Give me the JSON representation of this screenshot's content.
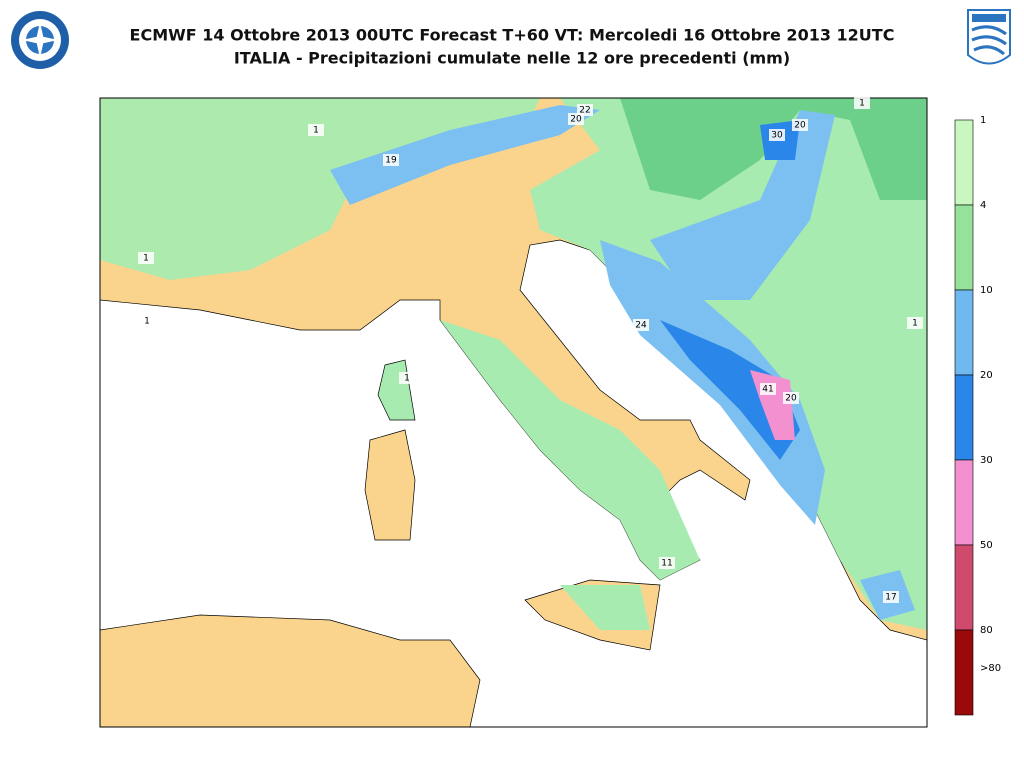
{
  "header": {
    "title_line1": "ECMWF 14 Ottobre 2013 00UTC Forecast T+60 VT: Mercoledi 16 Ottobre 2013 12UTC",
    "title_line2": "ITALIA - Precipitazioni cumulate nelle 12 ore precedenti (mm)"
  },
  "legend": {
    "labels": [
      "1",
      "4",
      "10",
      "20",
      "30",
      "50",
      "80",
      ">80"
    ],
    "colors": [
      "#c8f7c0",
      "#96e29a",
      "#6fb8f0",
      "#2a86e8",
      "#f290d0",
      "#d04a6e",
      "#9a0a0a"
    ]
  },
  "map_labels": [
    "22",
    "20",
    "30",
    "20",
    "19",
    "1",
    "1",
    "1",
    "1",
    "1",
    "1",
    "24",
    "41",
    "20",
    "11",
    "17"
  ]
}
